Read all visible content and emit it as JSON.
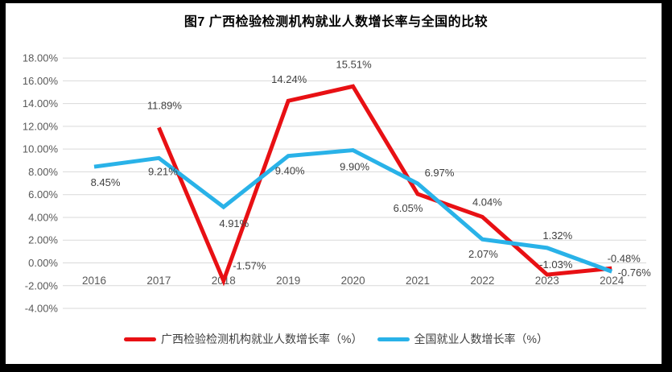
{
  "title": "图7 广西检验检测机构就业人数增长率与全国的比较",
  "colors": {
    "guangxi": "#E81014",
    "national": "#29B2E8",
    "grid": "#D9D9D9",
    "axis_text": "#595959",
    "label_text": "#404040"
  },
  "chart_data": {
    "type": "line",
    "title": "图7 广西检验检测机构就业人数增长率与全国的比较",
    "categories": [
      "2016",
      "2017",
      "2018",
      "2019",
      "2020",
      "2021",
      "2022",
      "2023",
      "2024"
    ],
    "series": [
      {
        "name": "广西检验检测机构就业人数增长率（%）",
        "color_key": "guangxi",
        "values": [
          null,
          11.89,
          -1.57,
          14.24,
          15.51,
          6.05,
          4.04,
          -1.03,
          -0.48
        ],
        "labels": [
          null,
          "11.89%",
          "-1.57%",
          "14.24%",
          "15.51%",
          "6.05%",
          "4.04%",
          "-1.03%",
          "-0.48%"
        ],
        "label_offsets": [
          null,
          [
            7,
            -23
          ],
          [
            32,
            -14
          ],
          [
            1,
            -22
          ],
          [
            1,
            -23
          ],
          [
            -12,
            22
          ],
          [
            6,
            -14
          ],
          [
            11,
            -8
          ],
          [
            15,
            -8
          ]
        ]
      },
      {
        "name": "全国就业人数增长率（%）",
        "color_key": "national",
        "values": [
          8.45,
          9.21,
          4.91,
          9.4,
          9.9,
          6.97,
          2.07,
          1.32,
          -0.76
        ],
        "labels": [
          "8.45%",
          "9.21%",
          "4.91%",
          "9.40%",
          "9.90%",
          "6.97%",
          "2.07%",
          "1.32%",
          "-0.76%"
        ],
        "label_offsets": [
          [
            14,
            24
          ],
          [
            5,
            21
          ],
          [
            13,
            25
          ],
          [
            2,
            23
          ],
          [
            2,
            25
          ],
          [
            27,
            -9
          ],
          [
            1,
            23
          ],
          [
            13,
            -11
          ],
          [
            28,
            6
          ]
        ]
      }
    ],
    "y_axis": {
      "tick_labels": [
        "18.00%",
        "16.00%",
        "14.00%",
        "12.00%",
        "10.00%",
        "8.00%",
        "6.00%",
        "4.00%",
        "2.00%",
        "0.00%",
        "-2.00%",
        "-4.00%"
      ],
      "tick_values": [
        18,
        16,
        14,
        12,
        10,
        8,
        6,
        4,
        2,
        0,
        -2,
        -4
      ]
    },
    "ylim": [
      -4,
      18
    ],
    "grid": true,
    "legend_position": "bottom"
  }
}
